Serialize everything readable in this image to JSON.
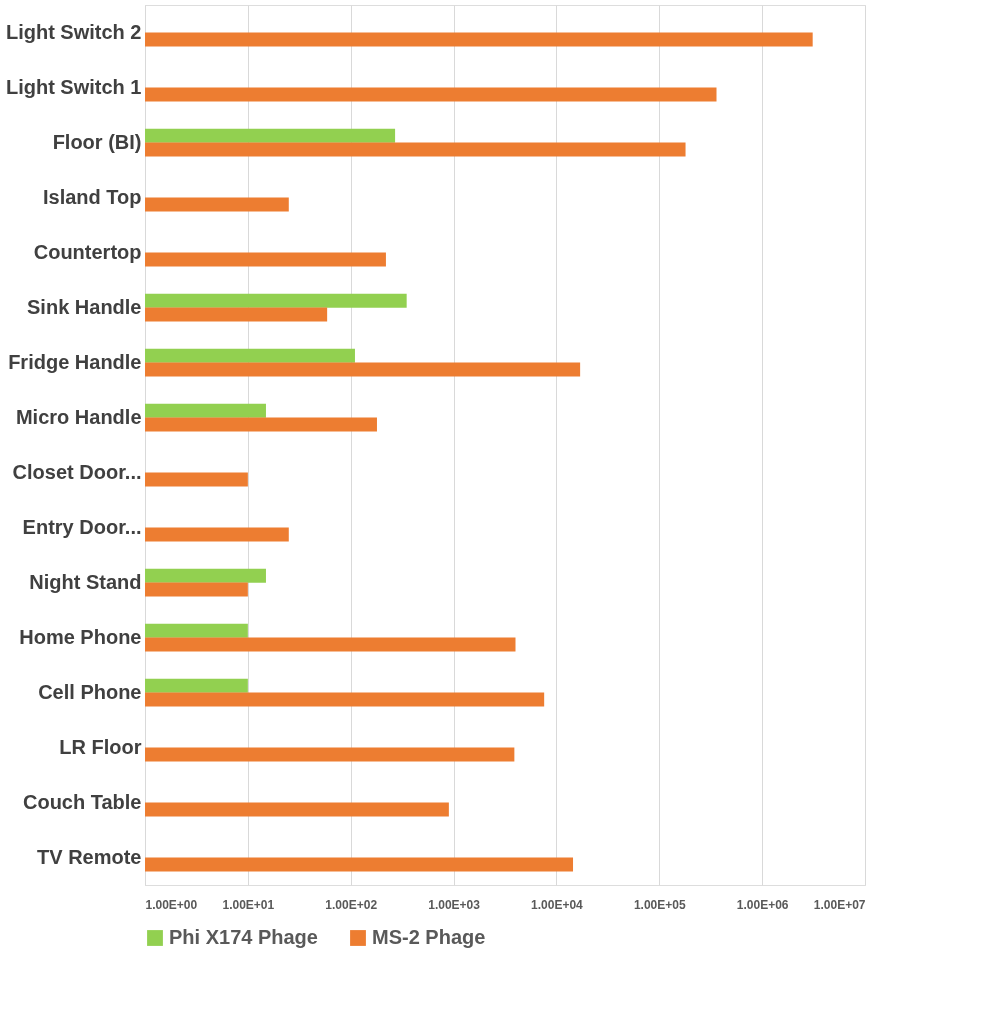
{
  "chart_data": {
    "type": "bar",
    "orientation": "horizontal",
    "log": "x",
    "categories": [
      "Light Switch 2",
      "Light Switch 1",
      "Floor (BI)",
      "Island Top",
      "Countertop",
      "Sink Handle",
      "Fridge Handle",
      "Micro Handle",
      "Closet Door...",
      "Entry Door...",
      "Night Stand",
      "Home Phone",
      "Cell Phone",
      "LR Floor",
      "Couch Table",
      "TV Remote"
    ],
    "series": [
      {
        "name": "Phi X174 Phage",
        "color": "#92d050",
        "values": [
          null,
          null,
          270,
          null,
          null,
          350,
          110,
          15,
          null,
          null,
          15,
          10,
          10,
          null,
          null,
          null
        ]
      },
      {
        "name": "MS-2 Phage",
        "color": "#ed7d31",
        "values": [
          3100000,
          360000,
          180000,
          25,
          220,
          59,
          17000,
          180,
          10,
          25,
          10,
          4000,
          7600,
          3900,
          900,
          14500
        ]
      }
    ],
    "xlim": [
      1,
      10000000
    ],
    "xticks": [
      {
        "value": 1,
        "label": "1.00E+00"
      },
      {
        "value": 10,
        "label": "1.00E+01"
      },
      {
        "value": 100,
        "label": "1.00E+02"
      },
      {
        "value": 1000,
        "label": "1.00E+03"
      },
      {
        "value": 10000,
        "label": "1.00E+04"
      },
      {
        "value": 100000,
        "label": "1.00E+05"
      },
      {
        "value": 1000000,
        "label": "1.00E+06"
      },
      {
        "value": 10000000,
        "label": "1.00E+07"
      }
    ],
    "grid": "x",
    "legend": "bottom"
  }
}
